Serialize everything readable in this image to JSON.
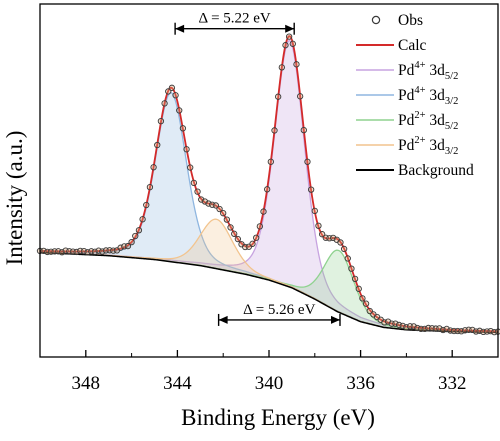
{
  "chart_data": {
    "type": "line",
    "xlabel": "Binding Energy (eV)",
    "ylabel": "Intensity (a.u.)",
    "x_reversed": true,
    "xlim": [
      350,
      330
    ],
    "ylim": [
      0,
      1
    ],
    "x_ticks": [
      348,
      344,
      340,
      336,
      332
    ],
    "show_y_ticks": false,
    "grid": false,
    "legend_position": "top-right",
    "annotations": [
      {
        "label": "Δ = 5.22 eV",
        "from": 344.1,
        "to": 338.9,
        "level": 0.93
      },
      {
        "label": "Δ = 5.26 eV",
        "from": 342.2,
        "to": 336.9,
        "level": 0.105
      }
    ],
    "series": [
      {
        "name": "Obs",
        "kind": "markers",
        "color": "#3a3a3a"
      },
      {
        "name": "Calc",
        "kind": "line",
        "color": "#d42a2a"
      },
      {
        "name": "Pd4+ 3d5/2",
        "legend_base": "Pd",
        "legend_sup": "4+",
        "legend_main": " 3d",
        "legend_sub": "5/2",
        "kind": "peak",
        "color": "#c7a3e0",
        "center": 339.1,
        "height": 0.698,
        "fwhm": 1.55
      },
      {
        "name": "Pd4+ 3d3/2",
        "legend_base": "Pd",
        "legend_sup": "4+",
        "legend_main": " 3d",
        "legend_sub": "3/2",
        "kind": "peak",
        "color": "#8fb6e0",
        "center": 344.28,
        "height": 0.479,
        "fwhm": 1.6
      },
      {
        "name": "Pd2+ 3d5/2",
        "legend_base": "Pd",
        "legend_sup": "2+",
        "legend_main": " 3d",
        "legend_sub": "5/2",
        "kind": "peak",
        "color": "#8fd28f",
        "center": 336.95,
        "height": 0.175,
        "fwhm": 1.55
      },
      {
        "name": "Pd2+ 3d3/2",
        "legend_base": "Pd",
        "legend_sup": "2+",
        "legend_main": " 3d",
        "legend_sub": "3/2",
        "kind": "peak",
        "color": "#f2c48e",
        "center": 342.3,
        "height": 0.14,
        "fwhm": 1.7
      },
      {
        "name": "Background",
        "kind": "line",
        "color": "#000000",
        "x": [
          350,
          347,
          345,
          343,
          341,
          340,
          339,
          338,
          337,
          336,
          335,
          334,
          332,
          330
        ],
        "y": [
          0.296,
          0.287,
          0.276,
          0.259,
          0.234,
          0.218,
          0.196,
          0.164,
          0.128,
          0.1,
          0.084,
          0.077,
          0.072,
          0.07
        ]
      }
    ]
  }
}
